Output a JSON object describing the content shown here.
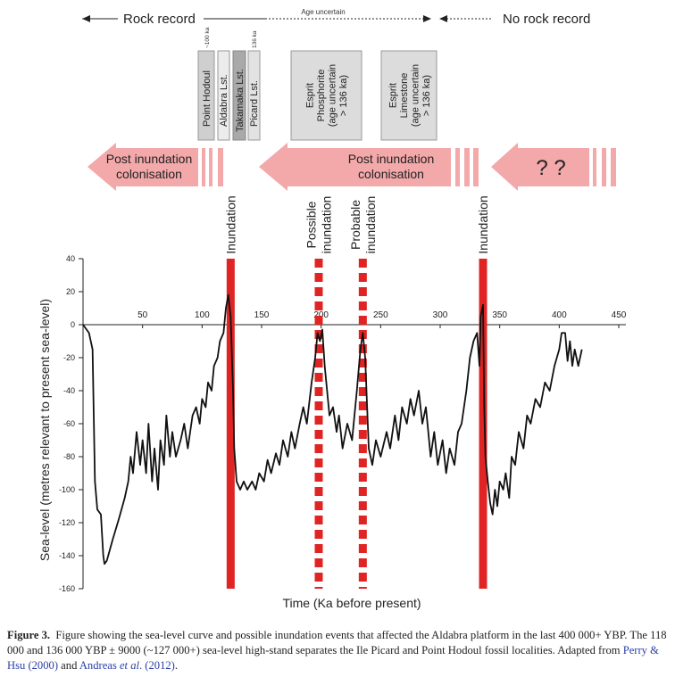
{
  "diagram": {
    "rock_record": "Rock record",
    "age_uncertain": "Age uncertain",
    "no_rock_record": "No rock record",
    "localities": [
      {
        "label": "Point Hodoul",
        "age": "~100 ka"
      },
      {
        "label": "Aldabra Lst."
      },
      {
        "label": "Takamaka Lst."
      },
      {
        "label": "Picard Lst.",
        "age": "136 ka"
      }
    ],
    "esprit": [
      {
        "lines": [
          "Esprit",
          "Phosphorite",
          "(age uncertain",
          "> 136 ka)"
        ]
      },
      {
        "lines": [
          "Esprit",
          "Limestone",
          "(age uncertain",
          "> 136 ka)"
        ]
      }
    ],
    "colonisation": [
      [
        "Post inundation",
        "colonisation"
      ],
      [
        "Post inundation",
        "colonisation"
      ]
    ],
    "unknown": "? ?"
  },
  "chart_data": {
    "type": "line",
    "xlabel": "Time (Ka before present)",
    "ylabel": "Sea-level (metres relevant to present sea-level)",
    "xlim": [
      0,
      450
    ],
    "ylim": [
      -160,
      40
    ],
    "xticks": [
      50,
      100,
      150,
      200,
      250,
      300,
      350,
      400,
      450
    ],
    "yticks": [
      -160,
      -140,
      -120,
      -100,
      -80,
      -60,
      -40,
      -20,
      0,
      20,
      40
    ],
    "events": [
      {
        "label": [
          "Inundation"
        ],
        "x": 124,
        "style": "solid"
      },
      {
        "label": [
          "Possible",
          "inundation"
        ],
        "x": 198,
        "style": "dashed"
      },
      {
        "label": [
          "Probable",
          "inundation"
        ],
        "x": 235,
        "style": "dashed"
      },
      {
        "label": [
          "Inundation"
        ],
        "x": 336,
        "style": "solid"
      }
    ],
    "event_color": "#e02424",
    "series": [
      {
        "name": "Sea-level",
        "color": "#111111",
        "x": [
          0,
          5,
          8,
          10,
          12,
          15,
          17,
          18,
          20,
          25,
          30,
          35,
          38,
          40,
          42,
          45,
          48,
          50,
          53,
          55,
          58,
          60,
          63,
          65,
          68,
          70,
          73,
          75,
          78,
          82,
          85,
          88,
          92,
          95,
          98,
          100,
          103,
          105,
          108,
          110,
          113,
          115,
          118,
          120,
          122,
          124,
          126,
          127,
          129,
          132,
          135,
          138,
          142,
          145,
          148,
          152,
          155,
          158,
          162,
          165,
          168,
          172,
          175,
          178,
          182,
          185,
          188,
          192,
          195,
          197,
          199,
          201,
          203,
          205,
          207,
          210,
          213,
          215,
          218,
          222,
          226,
          230,
          233,
          235,
          237,
          240,
          243,
          246,
          250,
          255,
          258,
          262,
          265,
          268,
          272,
          275,
          278,
          282,
          285,
          288,
          292,
          295,
          298,
          302,
          305,
          308,
          312,
          315,
          318,
          322,
          325,
          328,
          331,
          333,
          334,
          336,
          337,
          338,
          340,
          342,
          344,
          346,
          348,
          350,
          353,
          355,
          358,
          360,
          363,
          366,
          370,
          373,
          376,
          380,
          384,
          388,
          392,
          396,
          400,
          402,
          405,
          407,
          409,
          411,
          413,
          416,
          419
        ],
        "values": [
          0,
          -5,
          -15,
          -95,
          -112,
          -115,
          -140,
          -145,
          -143,
          -130,
          -118,
          -105,
          -95,
          -80,
          -90,
          -65,
          -85,
          -70,
          -90,
          -60,
          -95,
          -75,
          -100,
          -70,
          -85,
          -55,
          -80,
          -65,
          -80,
          -70,
          -60,
          -75,
          -55,
          -50,
          -60,
          -45,
          -50,
          -35,
          -40,
          -25,
          -20,
          -10,
          -5,
          10,
          18,
          5,
          -40,
          -75,
          -95,
          -100,
          -95,
          -100,
          -95,
          -100,
          -90,
          -95,
          -82,
          -90,
          -78,
          -85,
          -70,
          -80,
          -65,
          -75,
          -60,
          -50,
          -60,
          -35,
          -20,
          -5,
          -10,
          -3,
          -25,
          -40,
          -55,
          -50,
          -65,
          -55,
          -75,
          -60,
          -70,
          -40,
          -15,
          -5,
          -20,
          -75,
          -85,
          -70,
          -80,
          -65,
          -75,
          -55,
          -70,
          -50,
          -60,
          -45,
          -55,
          -40,
          -60,
          -50,
          -80,
          -65,
          -85,
          -70,
          -90,
          -75,
          -85,
          -65,
          -60,
          -40,
          -20,
          -10,
          -5,
          -25,
          5,
          12,
          -50,
          -80,
          -95,
          -108,
          -115,
          -100,
          -110,
          -95,
          -100,
          -90,
          -105,
          -80,
          -85,
          -65,
          -75,
          -55,
          -60,
          -45,
          -50,
          -35,
          -40,
          -25,
          -15,
          -5,
          -5,
          -22,
          -10,
          -25,
          -15,
          -25,
          -15
        ]
      }
    ]
  },
  "caption": {
    "label": "Figure 3.",
    "text": "Figure showing the sea-level curve and possible inundation events that affected the Aldabra platform in the last 400 000+ YBP. The 118 000 and 136 000 YBP ± 9000 (~127 000+) sea-level high-stand separates the Ile Picard and Point Hodoul fossil localities. Adapted from ",
    "ref1": "Perry & Hsu (2000)",
    "joiner": " and ",
    "ref2_name": "Andreas ",
    "ref2_etal": "et al",
    "ref2_year": ". (2012)",
    "end": "."
  }
}
